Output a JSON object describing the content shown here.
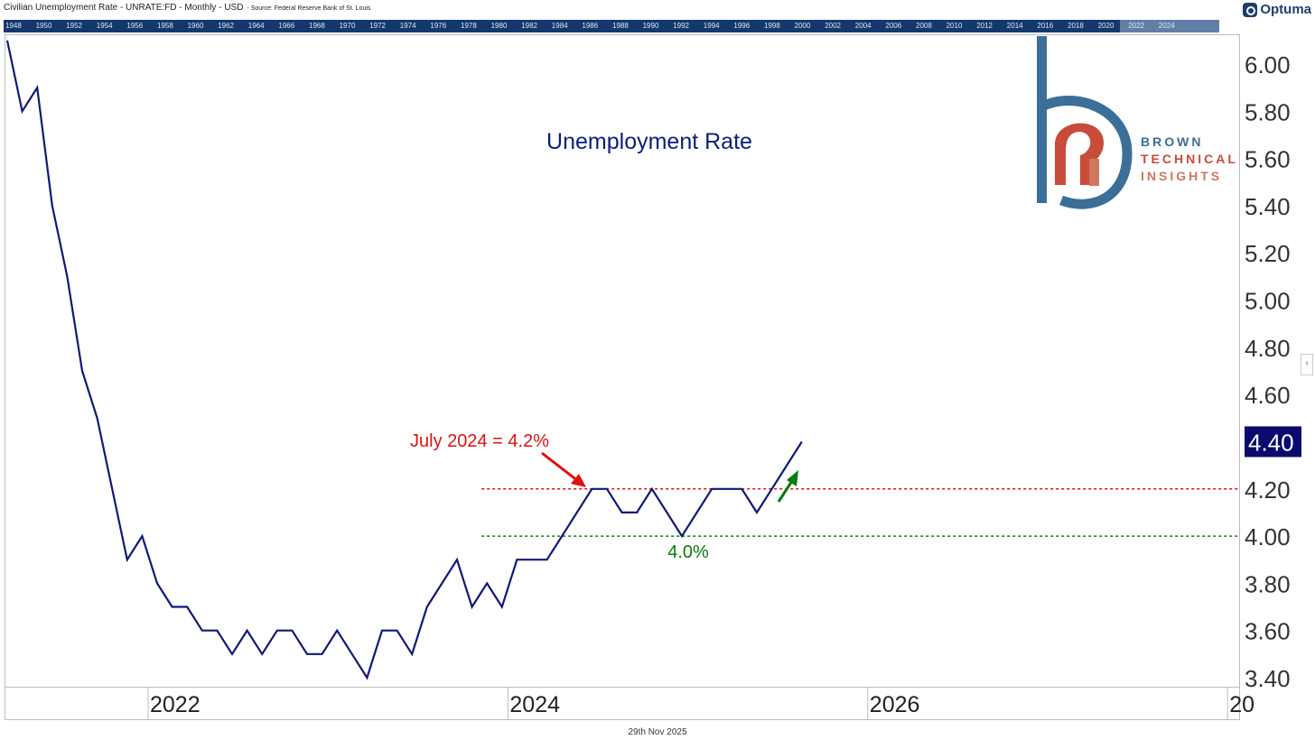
{
  "header": {
    "title": "Civilian Unemployment Rate - UNRATE:FD - Monthly - USD",
    "source": "- Source: Federal Reserve Bank of St. Louis",
    "brand": "Optuma"
  },
  "overview_years": [
    "1948",
    "1950",
    "1952",
    "1954",
    "1956",
    "1958",
    "1960",
    "1962",
    "1964",
    "1966",
    "1968",
    "1970",
    "1972",
    "1974",
    "1976",
    "1978",
    "1980",
    "1982",
    "1984",
    "1986",
    "1988",
    "1990",
    "1992",
    "1994",
    "1996",
    "1998",
    "2000",
    "2002",
    "2004",
    "2006",
    "2008",
    "2010",
    "2012",
    "2014",
    "2016",
    "2018",
    "2020",
    "2022",
    "2024"
  ],
  "logo": {
    "line1": "BROWN",
    "line2": "TECHNICAL",
    "line3": "INSIGHTS"
  },
  "footer_date": "29th Nov 2025",
  "handle_glyph": "‹",
  "colors": {
    "series": "#10197a",
    "resistance": "#e01010",
    "support": "#0a7a0a",
    "title": "#0b1f7a",
    "badge": "#0a0a6e"
  },
  "chart_data": {
    "type": "line",
    "title": "Unemployment Rate",
    "xlabel": "",
    "ylabel": "",
    "x_ticks": [
      {
        "label": "2022",
        "date": "2022-01"
      },
      {
        "label": "2024",
        "date": "2024-01"
      },
      {
        "label": "2026",
        "date": "2026-01"
      },
      {
        "label": "20",
        "date": "2028-01"
      }
    ],
    "ylim": [
      3.4,
      6.0
    ],
    "y_ticks": [
      "6.00",
      "5.80",
      "5.60",
      "5.40",
      "5.20",
      "5.00",
      "4.80",
      "4.60",
      "4.40",
      "4.20",
      "4.00",
      "3.80",
      "3.60",
      "3.40"
    ],
    "last_value_label": "4.40",
    "series": [
      {
        "dates": [
          "2021-03",
          "2021-04",
          "2021-05",
          "2021-06",
          "2021-07",
          "2021-08",
          "2021-09",
          "2021-10",
          "2021-11",
          "2021-12",
          "2022-01",
          "2022-02",
          "2022-03",
          "2022-04",
          "2022-05",
          "2022-06",
          "2022-07",
          "2022-08",
          "2022-09",
          "2022-10",
          "2022-11",
          "2022-12",
          "2023-01",
          "2023-02",
          "2023-03",
          "2023-04",
          "2023-05",
          "2023-06",
          "2023-07",
          "2023-08",
          "2023-09",
          "2023-10",
          "2023-11",
          "2023-12",
          "2024-01",
          "2024-02",
          "2024-03",
          "2024-04",
          "2024-05",
          "2024-06",
          "2024-07",
          "2024-08",
          "2024-09",
          "2024-10",
          "2024-11",
          "2024-12",
          "2025-01",
          "2025-02",
          "2025-03",
          "2025-04",
          "2025-05",
          "2025-06",
          "2025-07",
          "2025-08"
        ],
        "values": [
          6.1,
          5.8,
          5.9,
          5.4,
          5.1,
          4.7,
          4.5,
          4.2,
          3.9,
          4.0,
          3.8,
          3.7,
          3.7,
          3.6,
          3.6,
          3.5,
          3.6,
          3.5,
          3.6,
          3.6,
          3.5,
          3.5,
          3.6,
          3.5,
          3.4,
          3.6,
          3.6,
          3.5,
          3.7,
          3.8,
          3.9,
          3.7,
          3.8,
          3.7,
          3.9,
          3.9,
          3.9,
          4.0,
          4.1,
          4.2,
          4.2,
          4.1,
          4.1,
          4.2,
          4.1,
          4.0,
          4.1,
          4.2,
          4.2,
          4.2,
          4.1,
          4.2,
          4.3,
          4.4
        ]
      }
    ],
    "reference_lines": [
      {
        "value": 4.2,
        "start_date": "2023-11",
        "style": "dotted",
        "color": "#e01010"
      },
      {
        "value": 4.0,
        "start_date": "2023-11",
        "style": "dotted",
        "color": "#0a7a0a"
      }
    ],
    "annotations": [
      {
        "text": "July 2024 = 4.2%",
        "color": "#e01010"
      },
      {
        "text": "4.0%",
        "color": "#0a7a0a"
      }
    ]
  }
}
